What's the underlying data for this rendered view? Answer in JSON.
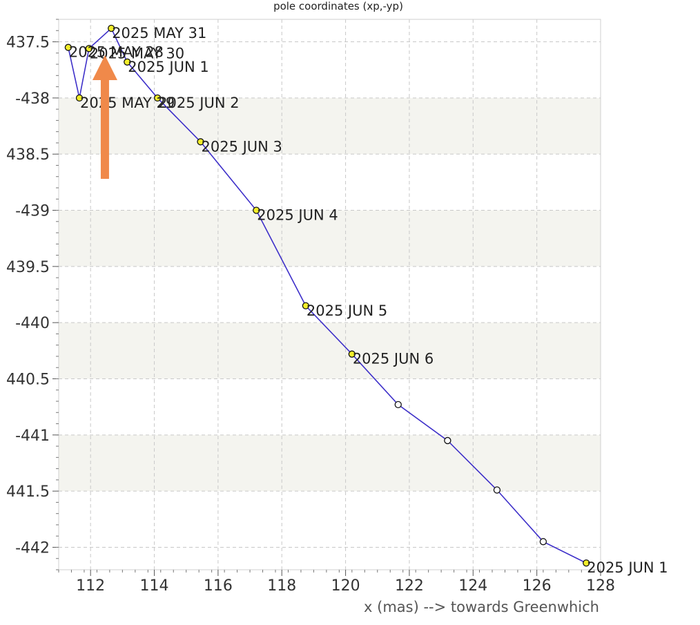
{
  "chart_data": {
    "type": "scatter",
    "title": "pole coordinates (xp,-yp)",
    "xlabel": "x (mas) --> towards Greenwhich",
    "ylabel": "",
    "xlim": [
      111,
      128
    ],
    "ylim": [
      -442.2,
      -437.3
    ],
    "xticks": [
      112,
      114,
      116,
      118,
      120,
      122,
      124,
      126,
      128
    ],
    "yticks": [
      -437.5,
      -438,
      -438.5,
      -439,
      -439.5,
      -440,
      -440.5,
      -441,
      -441.5,
      -442
    ],
    "ytick_labels": [
      "437.5",
      "-438",
      "438.5",
      "-439",
      "439.5",
      "-440",
      "440.5",
      "-441",
      "441.5",
      "-442"
    ],
    "grid": true,
    "series": [
      {
        "color": "#3d2fc9",
        "points": [
          {
            "x": 111.3,
            "y": -437.55,
            "label": "2025 MAY 28",
            "kind": "observed"
          },
          {
            "x": 111.65,
            "y": -438.0,
            "label": "2025 MAY 29",
            "kind": "observed"
          },
          {
            "x": 111.95,
            "y": -437.56,
            "label": "2025 MAY 30",
            "kind": "observed"
          },
          {
            "x": 112.65,
            "y": -437.38,
            "label": "2025 MAY 31",
            "kind": "observed"
          },
          {
            "x": 113.15,
            "y": -437.68,
            "label": "2025 JUN 1",
            "kind": "observed"
          },
          {
            "x": 114.1,
            "y": -438.0,
            "label": "2025 JUN 2",
            "kind": "observed"
          },
          {
            "x": 115.45,
            "y": -438.39,
            "label": "2025 JUN 3",
            "kind": "observed"
          },
          {
            "x": 117.2,
            "y": -439.0,
            "label": "2025 JUN 4",
            "kind": "observed"
          },
          {
            "x": 118.75,
            "y": -439.85,
            "label": "2025 JUN 5",
            "kind": "observed"
          },
          {
            "x": 120.2,
            "y": -440.28,
            "label": "2025 JUN 6",
            "kind": "observed"
          },
          {
            "x": 121.65,
            "y": -440.73,
            "label": "",
            "kind": "predicted"
          },
          {
            "x": 123.2,
            "y": -441.05,
            "label": "",
            "kind": "predicted"
          },
          {
            "x": 124.75,
            "y": -441.49,
            "label": "",
            "kind": "predicted"
          },
          {
            "x": 126.2,
            "y": -441.95,
            "label": "",
            "kind": "predicted"
          },
          {
            "x": 127.55,
            "y": -442.14,
            "label": "2025 JUN 1",
            "kind": "observed"
          }
        ]
      }
    ],
    "annotations": [
      {
        "type": "arrow",
        "color": "#f0894a",
        "direction": "up",
        "x": 112.45,
        "y_from": -438.72,
        "y_to": -437.62
      }
    ]
  },
  "colors": {
    "line": "#3d2fc9",
    "observed_marker": "#f3ee2a",
    "predicted_marker": "#ffffff",
    "band": "#f4f4ef",
    "grid": "#c8c8c8",
    "arrow": "#f0894a"
  }
}
